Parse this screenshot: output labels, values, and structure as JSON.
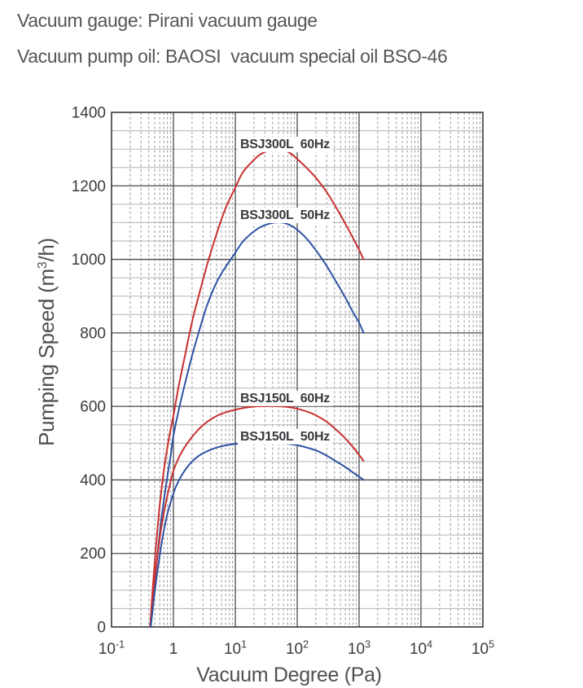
{
  "header": {
    "line1": "Vacuum gauge: Pirani vacuum gauge",
    "line2": "Vacuum pump oil: BAOSI  vacuum special oil BSO-46"
  },
  "chart_data": {
    "type": "line",
    "title": "",
    "xlabel": "Vacuum Degree (Pa)",
    "ylabel_parts": {
      "pre": "Pumping Speed (m",
      "sup": "3",
      "post": "/h)"
    },
    "x_scale": "log",
    "xlim": [
      0.1,
      100000
    ],
    "ylim": [
      0,
      1400
    ],
    "y_major_step": 200,
    "y_minor_step": 50,
    "grid": "both",
    "legend_position": "inline-labels",
    "x_ticks": [
      {
        "value": 0.1,
        "mantissa": "10",
        "exp": "-1"
      },
      {
        "value": 1,
        "mantissa": "1",
        "exp": ""
      },
      {
        "value": 10,
        "mantissa": "10",
        "exp": "1"
      },
      {
        "value": 100,
        "mantissa": "10",
        "exp": "2"
      },
      {
        "value": 1000,
        "mantissa": "10",
        "exp": "3"
      },
      {
        "value": 10000,
        "mantissa": "10",
        "exp": "4"
      },
      {
        "value": 100000,
        "mantissa": "10",
        "exp": "5"
      }
    ],
    "y_ticks": [
      0,
      200,
      400,
      600,
      800,
      1000,
      1200,
      1400
    ],
    "series": [
      {
        "name": "BSJ300L 60Hz",
        "label": "BSJ300L  60Hz",
        "color": "#c9302e",
        "label_anchor": {
          "pa": 12,
          "value": 1315
        },
        "points": [
          [
            0.42,
            0
          ],
          [
            0.46,
            100
          ],
          [
            0.52,
            215
          ],
          [
            0.6,
            330
          ],
          [
            0.7,
            425
          ],
          [
            0.85,
            515
          ],
          [
            1,
            575
          ],
          [
            1.2,
            650
          ],
          [
            1.5,
            730
          ],
          [
            2,
            830
          ],
          [
            2.6,
            905
          ],
          [
            3.5,
            985
          ],
          [
            5,
            1070
          ],
          [
            7,
            1140
          ],
          [
            10,
            1195
          ],
          [
            13,
            1235
          ],
          [
            18,
            1263
          ],
          [
            25,
            1285
          ],
          [
            35,
            1296
          ],
          [
            48,
            1300
          ],
          [
            62,
            1297
          ],
          [
            80,
            1287
          ],
          [
            100,
            1273
          ],
          [
            140,
            1250
          ],
          [
            200,
            1222
          ],
          [
            300,
            1183
          ],
          [
            430,
            1140
          ],
          [
            600,
            1097
          ],
          [
            800,
            1058
          ],
          [
            1000,
            1026
          ],
          [
            1180,
            1000
          ]
        ]
      },
      {
        "name": "BSJ300L 50Hz",
        "label": "BSJ300L  50Hz",
        "color": "#2e53a3",
        "label_anchor": {
          "pa": 12,
          "value": 1122
        },
        "points": [
          [
            0.43,
            0
          ],
          [
            0.48,
            95
          ],
          [
            0.55,
            195
          ],
          [
            0.64,
            295
          ],
          [
            0.76,
            385
          ],
          [
            0.9,
            465
          ],
          [
            1,
            520
          ],
          [
            1.2,
            585
          ],
          [
            1.5,
            655
          ],
          [
            2,
            738
          ],
          [
            2.6,
            805
          ],
          [
            3.5,
            875
          ],
          [
            5,
            938
          ],
          [
            7,
            980
          ],
          [
            10,
            1018
          ],
          [
            13,
            1047
          ],
          [
            18,
            1070
          ],
          [
            25,
            1087
          ],
          [
            35,
            1097
          ],
          [
            50,
            1101
          ],
          [
            65,
            1098
          ],
          [
            85,
            1089
          ],
          [
            110,
            1075
          ],
          [
            150,
            1052
          ],
          [
            210,
            1020
          ],
          [
            300,
            982
          ],
          [
            430,
            938
          ],
          [
            600,
            896
          ],
          [
            800,
            856
          ],
          [
            1000,
            828
          ],
          [
            1180,
            800
          ]
        ]
      },
      {
        "name": "BSJ150L 60Hz",
        "label": "BSJ150L  60Hz",
        "color": "#c9302e",
        "label_anchor": {
          "pa": 12,
          "value": 624
        },
        "points": [
          [
            0.42,
            0
          ],
          [
            0.47,
            90
          ],
          [
            0.54,
            180
          ],
          [
            0.63,
            265
          ],
          [
            0.76,
            340
          ],
          [
            0.9,
            395
          ],
          [
            1,
            425
          ],
          [
            1.3,
            470
          ],
          [
            1.8,
            507
          ],
          [
            2.5,
            536
          ],
          [
            3.5,
            558
          ],
          [
            5,
            574
          ],
          [
            7,
            584
          ],
          [
            10,
            591
          ],
          [
            15,
            597
          ],
          [
            22,
            600
          ],
          [
            35,
            601
          ],
          [
            55,
            600
          ],
          [
            80,
            597
          ],
          [
            110,
            592
          ],
          [
            150,
            585
          ],
          [
            210,
            574
          ],
          [
            300,
            558
          ],
          [
            430,
            536
          ],
          [
            600,
            513
          ],
          [
            800,
            489
          ],
          [
            1000,
            468
          ],
          [
            1180,
            452
          ]
        ]
      },
      {
        "name": "BSJ150L 50Hz",
        "label": "BSJ150L  50Hz",
        "color": "#2e53a3",
        "label_anchor": {
          "pa": 12,
          "value": 520
        },
        "points": [
          [
            0.43,
            0
          ],
          [
            0.49,
            85
          ],
          [
            0.57,
            168
          ],
          [
            0.67,
            245
          ],
          [
            0.8,
            308
          ],
          [
            0.95,
            352
          ],
          [
            1.1,
            382
          ],
          [
            1.4,
            416
          ],
          [
            1.9,
            446
          ],
          [
            2.6,
            466
          ],
          [
            3.6,
            479
          ],
          [
            5,
            488
          ],
          [
            7,
            494
          ],
          [
            10,
            498
          ],
          [
            15,
            500
          ],
          [
            22,
            501
          ],
          [
            35,
            501
          ],
          [
            55,
            500
          ],
          [
            80,
            497
          ],
          [
            110,
            493
          ],
          [
            150,
            487
          ],
          [
            210,
            479
          ],
          [
            300,
            466
          ],
          [
            430,
            450
          ],
          [
            600,
            435
          ],
          [
            800,
            420
          ],
          [
            1000,
            409
          ],
          [
            1180,
            400
          ]
        ]
      }
    ]
  },
  "colors": {
    "header_text": "#55555a",
    "axis_title_text": "#505054",
    "tick_text": "#3b3b3f",
    "curve_label_text": "#39393d",
    "curve_label_bg": "#ffffff",
    "grid_major": "#4a4a4e",
    "grid_minor_vertical": "#98989f",
    "grid_minor_horizontal": "#b3b3b8",
    "frame": "#38383c",
    "background": "#ffffff"
  }
}
